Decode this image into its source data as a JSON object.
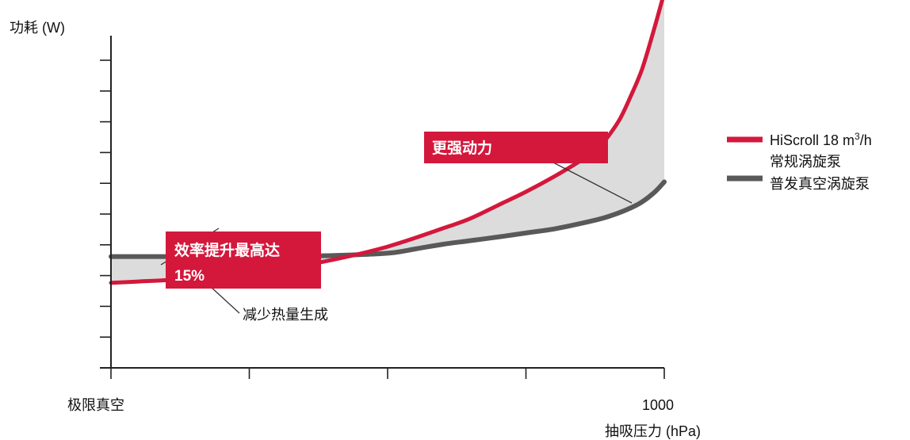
{
  "chart_data": {
    "type": "line",
    "ylabel": "功耗 (W)",
    "xlabel": "抽吸压力 (hPa)",
    "x_tick_labels": {
      "min": "极限真空",
      "max": "1000"
    },
    "xlim": [
      0,
      1000
    ],
    "ylim": [
      0,
      100
    ],
    "x_ticks_count": 5,
    "y_ticks_count": 10,
    "grid": false,
    "legend_position": "right",
    "colors": {
      "red": "#d3183c",
      "gray": "#595959",
      "fill": "#dcdcdc",
      "axis": "#222222"
    },
    "series": [
      {
        "name": "HiScroll 18 m3/h",
        "color": "#d3183c",
        "x": [
          0,
          50,
          100,
          200,
          300,
          400,
          500,
          600,
          650,
          700,
          750,
          800,
          850,
          880,
          900,
          920,
          940,
          960,
          980,
          1000
        ],
        "y": [
          25.6,
          26,
          26.4,
          27.5,
          29.5,
          32.5,
          36.5,
          42,
          45,
          49,
          53,
          57.5,
          62.5,
          66,
          70,
          75,
          82,
          90,
          101,
          113
        ]
      },
      {
        "name": "常规涡旋泵 普发真空涡旋泵",
        "color": "#595959",
        "x": [
          0,
          100,
          200,
          300,
          400,
          500,
          550,
          600,
          650,
          700,
          750,
          800,
          850,
          900,
          950,
          980,
          1000
        ],
        "y": [
          33.5,
          33.5,
          33.5,
          33.6,
          33.8,
          34.5,
          35.8,
          37.2,
          38.3,
          39.4,
          40.6,
          41.8,
          43.5,
          45.6,
          49,
          52.5,
          56
        ]
      }
    ],
    "legend": [
      {
        "text": "HiScroll 18 m",
        "sup": "3",
        "suffix": "/h",
        "color": "#d3183c"
      },
      {
        "lines": [
          "常规涡旋泵",
          "普发真空涡旋泵"
        ],
        "color": "#595959"
      }
    ],
    "annotations": [
      {
        "type": "tag",
        "lines": [
          "效率提升最高达",
          "15%"
        ]
      },
      {
        "type": "tag",
        "lines": [
          "更强动力"
        ]
      },
      {
        "type": "text",
        "text": "减少热量生成"
      }
    ]
  }
}
